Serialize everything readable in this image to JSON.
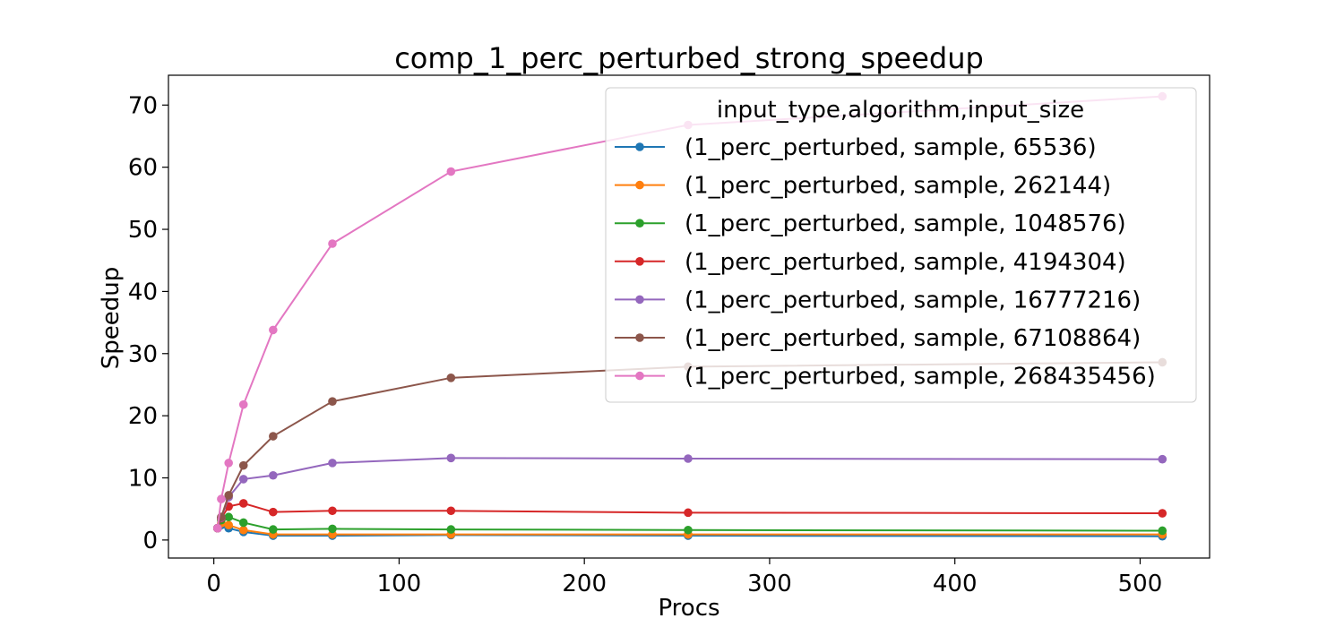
{
  "chart_data": {
    "type": "line",
    "title": "comp_1_perc_perturbed_strong_speedup",
    "xlabel": "Procs",
    "ylabel": "Speedup",
    "xlim": [
      -24.5,
      537.5
    ],
    "ylim": [
      -2.9,
      74.8
    ],
    "xticks": [
      0,
      100,
      200,
      300,
      400,
      500
    ],
    "yticks": [
      0,
      10,
      20,
      30,
      40,
      50,
      60,
      70
    ],
    "grid": false,
    "legend": {
      "title": "input_type,algorithm,input_size",
      "placement": "upper-right"
    },
    "x": [
      2,
      4,
      8,
      16,
      32,
      64,
      128,
      256,
      512
    ],
    "series": [
      {
        "name": "(1_perc_perturbed, sample, 65536)",
        "color": "#1f77b4",
        "values": [
          1.9,
          2.4,
          1.9,
          1.3,
          0.7,
          0.7,
          0.8,
          0.7,
          0.6
        ]
      },
      {
        "name": "(1_perc_perturbed, sample, 262144)",
        "color": "#ff7f0e",
        "values": [
          1.9,
          2.7,
          2.4,
          1.6,
          0.9,
          0.9,
          0.9,
          0.9,
          0.9
        ]
      },
      {
        "name": "(1_perc_perturbed, sample, 1048576)",
        "color": "#2ca02c",
        "values": [
          1.9,
          3.2,
          3.7,
          2.8,
          1.7,
          1.8,
          1.7,
          1.6,
          1.5
        ]
      },
      {
        "name": "(1_perc_perturbed, sample, 4194304)",
        "color": "#d62728",
        "values": [
          1.9,
          3.5,
          5.4,
          5.9,
          4.5,
          4.7,
          4.7,
          4.4,
          4.3
        ]
      },
      {
        "name": "(1_perc_perturbed, sample, 16777216)",
        "color": "#9467bd",
        "values": [
          1.9,
          3.6,
          6.9,
          9.8,
          10.4,
          12.4,
          13.2,
          13.1,
          13.0
        ]
      },
      {
        "name": "(1_perc_perturbed, sample, 67108864)",
        "color": "#8c564b",
        "values": [
          1.9,
          3.7,
          7.2,
          12.0,
          16.7,
          22.3,
          26.1,
          27.9,
          28.6
        ]
      },
      {
        "name": "(1_perc_perturbed, sample, 268435456)",
        "color": "#e377c2",
        "values": [
          1.9,
          6.6,
          12.4,
          21.8,
          33.8,
          47.7,
          59.3,
          66.8,
          71.4
        ]
      }
    ]
  }
}
